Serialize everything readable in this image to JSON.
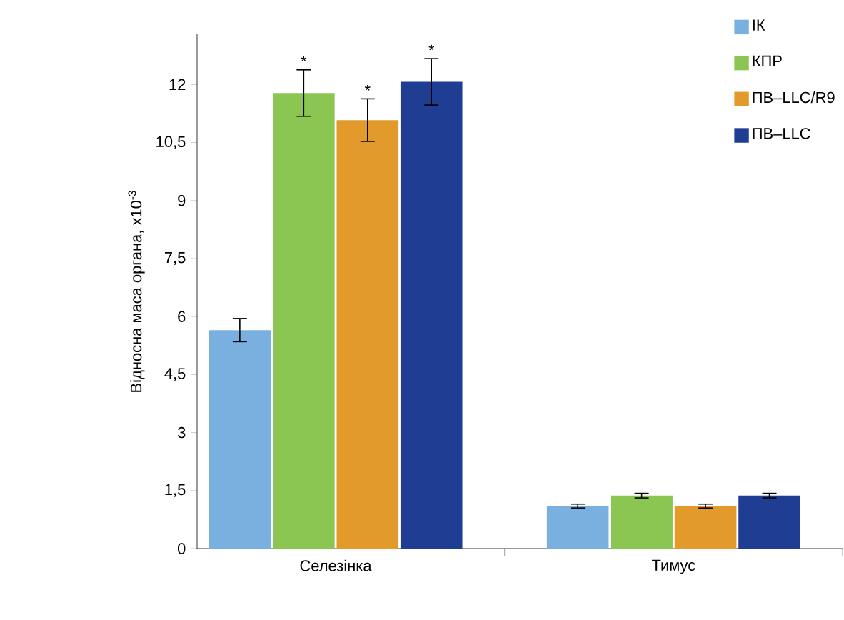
{
  "chart_data": {
    "type": "bar",
    "ylabel": "Відносна маса органа, х10$^{-3}$",
    "categories": [
      "Селезінка",
      "Тимус"
    ],
    "series": [
      {
        "name": "ІК",
        "color": "#7ab0e0",
        "values": [
          5.65,
          1.1
        ],
        "errors": [
          0.3,
          0.05
        ]
      },
      {
        "name": "КПР",
        "color": "#8bc653",
        "values": [
          11.78,
          1.37
        ],
        "errors": [
          0.6,
          0.06
        ]
      },
      {
        "name": "ПВ–LLC/R9",
        "color": "#e29a2a",
        "values": [
          11.08,
          1.1
        ],
        "errors": [
          0.55,
          0.05
        ]
      },
      {
        "name": "ПВ–LLC",
        "color": "#1f3e93",
        "values": [
          12.07,
          1.37
        ],
        "errors": [
          0.6,
          0.06
        ]
      }
    ],
    "ylim": [
      0,
      13.3
    ],
    "yticks": [
      0,
      {
        "value": 1.5,
        "label": "1,5"
      },
      3,
      {
        "value": 4.5,
        "label": "4,5"
      },
      6,
      {
        "value": 7.5,
        "label": "7,5"
      },
      9,
      {
        "value": 10.5,
        "label": "10,5"
      },
      12
    ],
    "annotations": [
      "*",
      "*",
      "*"
    ],
    "legend": "top right",
    "grid": false
  }
}
